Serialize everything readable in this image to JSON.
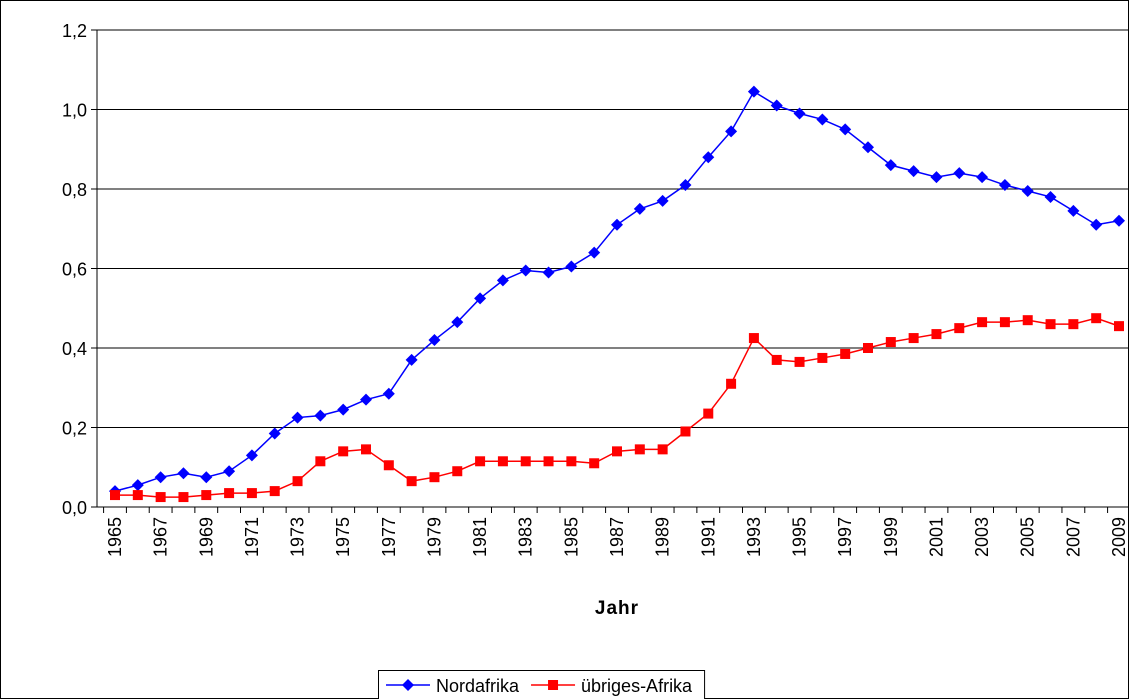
{
  "chart_data": {
    "type": "line",
    "x_label": "Jahr",
    "categories": [
      "1965",
      null,
      "1967",
      null,
      "1969",
      null,
      "1971",
      null,
      "1973",
      null,
      "1975",
      null,
      "1977",
      null,
      "1979",
      null,
      "1981",
      null,
      "1983",
      null,
      "1985",
      null,
      "1987",
      null,
      "1989",
      null,
      "1991",
      null,
      "1993",
      null,
      "1995",
      null,
      "1997",
      null,
      "1999",
      null,
      "2001",
      null,
      "2003",
      null,
      "2005",
      null,
      "2007",
      null,
      "2009"
    ],
    "series": [
      {
        "name": "Nordafrika",
        "color": "#0000ff",
        "marker": "diamond",
        "values": [
          0.04,
          0.055,
          0.075,
          0.085,
          0.075,
          0.09,
          0.13,
          0.185,
          0.225,
          0.23,
          0.245,
          0.27,
          0.285,
          0.37,
          0.42,
          0.465,
          0.525,
          0.57,
          0.595,
          0.59,
          0.605,
          0.64,
          0.71,
          0.75,
          0.77,
          0.81,
          0.88,
          0.945,
          1.045,
          1.01,
          0.99,
          0.975,
          0.95,
          0.905,
          0.86,
          0.845,
          0.83,
          0.84,
          0.83,
          0.81,
          0.795,
          0.78,
          0.745,
          0.71,
          0.72
        ]
      },
      {
        "name": "übriges-Afrika",
        "color": "#ff0000",
        "marker": "square",
        "values": [
          0.03,
          0.03,
          0.025,
          0.025,
          0.03,
          0.035,
          0.035,
          0.04,
          0.065,
          0.115,
          0.14,
          0.145,
          0.105,
          0.065,
          0.075,
          0.09,
          0.115,
          0.115,
          0.115,
          0.115,
          0.115,
          0.11,
          0.14,
          0.145,
          0.145,
          0.19,
          0.235,
          0.31,
          0.425,
          0.37,
          0.365,
          0.375,
          0.385,
          0.4,
          0.415,
          0.425,
          0.435,
          0.45,
          0.465,
          0.465,
          0.47,
          0.46,
          0.46,
          0.475,
          0.455
        ]
      }
    ],
    "ylim": [
      0,
      1.2
    ],
    "yticks": [
      {
        "value": 0,
        "label": "0,0"
      },
      {
        "value": 0.2,
        "label": "0,2"
      },
      {
        "value": 0.4,
        "label": "0,4"
      },
      {
        "value": 0.6,
        "label": "0,6"
      },
      {
        "value": 0.8,
        "label": "0,8"
      },
      {
        "value": 1.0,
        "label": "1,0"
      },
      {
        "value": 1.2,
        "label": "1,2"
      }
    ],
    "grid": true,
    "legend": "bottom"
  }
}
